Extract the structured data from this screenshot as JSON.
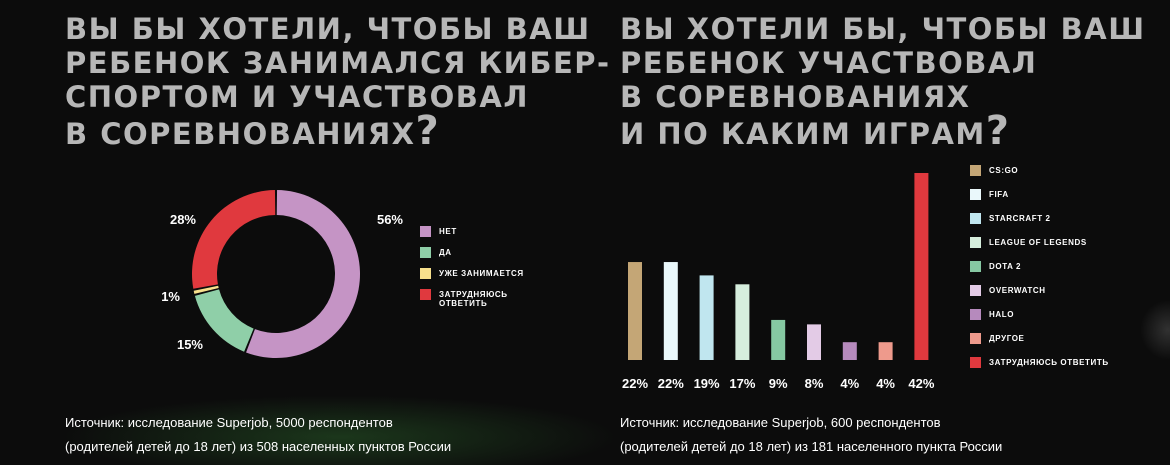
{
  "left": {
    "title_lines": [
      "ВЫ БЫ ХОТЕЛИ, ЧТОБЫ ВАШ",
      "РЕБЕНОК ЗАНИМАЛСЯ КИБЕР-",
      "СПОРТОМ И УЧАСТВОВАЛ",
      "В СОРЕВНОВАНИЯХ"
    ],
    "title_mark": "?",
    "source_lines": [
      "Источник: исследование Superjob, 5000 респондентов",
      "(родителей детей до 18 лет) из 508 населенных пунктов России"
    ]
  },
  "right": {
    "title_lines": [
      "ВЫ ХОТЕЛИ БЫ, ЧТОБЫ ВАШ",
      "РЕБЕНОК УЧАСТВОВАЛ",
      "В СОРЕВНОВАНИЯХ",
      "И ПО КАКИМ ИГРАМ"
    ],
    "title_mark": "?",
    "source_lines": [
      "Источник: исследование Superjob, 600 респондентов",
      "(родителей детей до 18 лет) из 181 населенного пункта России"
    ]
  },
  "chart_data": [
    {
      "type": "pie",
      "donut": true,
      "legend_position": "right",
      "slices": [
        {
          "label": "НЕТ",
          "label_lines": [
            "НЕТ"
          ],
          "value": 56,
          "display": "56%",
          "color": "#c594c5"
        },
        {
          "label": "ДА",
          "label_lines": [
            "ДА"
          ],
          "value": 15,
          "display": "15%",
          "color": "#8fcfa8"
        },
        {
          "label": "УЖЕ ЗАНИМАЕТСЯ",
          "label_lines": [
            "УЖЕ ЗАНИМАЕТСЯ"
          ],
          "value": 1,
          "display": "1%",
          "color": "#f7e08c"
        },
        {
          "label": "ЗАТРУДНЯЮСЬ ОТВЕТИТЬ",
          "label_lines": [
            "ЗАТРУДНЯЮСЬ",
            "ОТВЕТИТЬ"
          ],
          "value": 28,
          "display": "28%",
          "color": "#e0393e"
        }
      ]
    },
    {
      "type": "bar",
      "legend_position": "right",
      "grid": false,
      "ylim": [
        0,
        42
      ],
      "categories": [
        "CS:GO",
        "FIFA",
        "STARCRAFT 2",
        "LEAGUE OF LEGENDS",
        "DOTA 2",
        "OVERWATCH",
        "HALO",
        "ДРУГОЕ",
        "ЗАТРУДНЯЮСЬ ОТВЕТИТЬ"
      ],
      "values": [
        22,
        22,
        19,
        17,
        9,
        8,
        4,
        4,
        42
      ],
      "value_labels": [
        "22%",
        "22%",
        "19%",
        "17%",
        "9%",
        "8%",
        "4%",
        "4%",
        "42%"
      ],
      "colors": [
        "#c4a676",
        "#eaf8fb",
        "#c0e6ef",
        "#d6eedd",
        "#86c8a2",
        "#e3cbe6",
        "#b68abd",
        "#ee9a8c",
        "#e0393e"
      ]
    }
  ]
}
